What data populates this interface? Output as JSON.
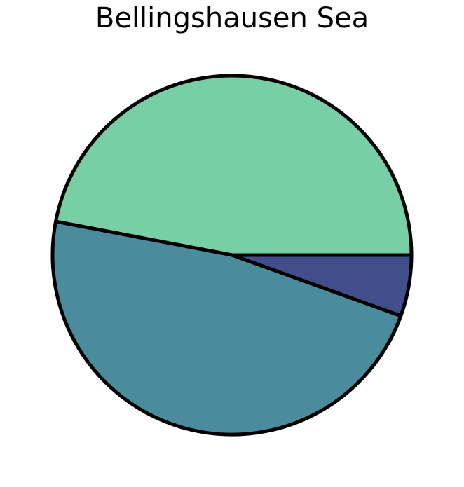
{
  "chart_data": {
    "type": "pie",
    "title": "Bellingshausen Sea",
    "slices": [
      {
        "value": 47.0,
        "color": "#78cea5"
      },
      {
        "value": 47.5,
        "color": "#4a8c9c"
      },
      {
        "value": 5.5,
        "color": "#424e8b"
      }
    ],
    "start_angle_deg": 0,
    "direction": "counterclockwise",
    "edge_color": "#000000",
    "legend": "none"
  }
}
